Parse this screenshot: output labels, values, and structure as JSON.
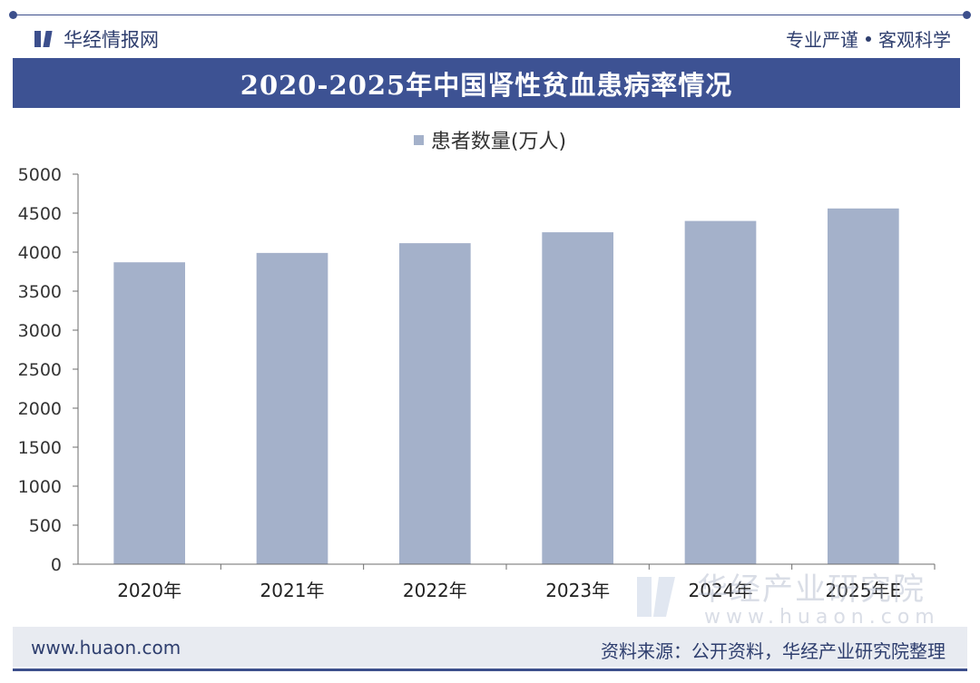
{
  "header": {
    "brand": "华经情报网",
    "motto_left": "专业严谨",
    "motto_right": "客观科学"
  },
  "footer": {
    "url": "www.huaon.com",
    "source": "资料来源：公开资料，华经产业研究院整理"
  },
  "watermark": {
    "name": "华经产业研究院",
    "url": "www.huaon.com"
  },
  "colors": {
    "banner": "#3d5293",
    "bar": "#a4b1ca",
    "axis": "#6d6d6d"
  },
  "chart_data": {
    "type": "bar",
    "title": "2020-2025年中国肾性贫血患病率情况",
    "categories": [
      "2020年",
      "2021年",
      "2022年",
      "2023年",
      "2024年",
      "2025年E"
    ],
    "series": [
      {
        "name": "患者数量(万人)",
        "values": [
          3870,
          3990,
          4115,
          4255,
          4400,
          4560
        ]
      }
    ],
    "xlabel": "",
    "ylabel": "",
    "ylim": [
      0,
      5000
    ],
    "yticks": [
      0,
      500,
      1000,
      1500,
      2000,
      2500,
      3000,
      3500,
      4000,
      4500,
      5000
    ],
    "grid": false,
    "legend": "top-center"
  }
}
